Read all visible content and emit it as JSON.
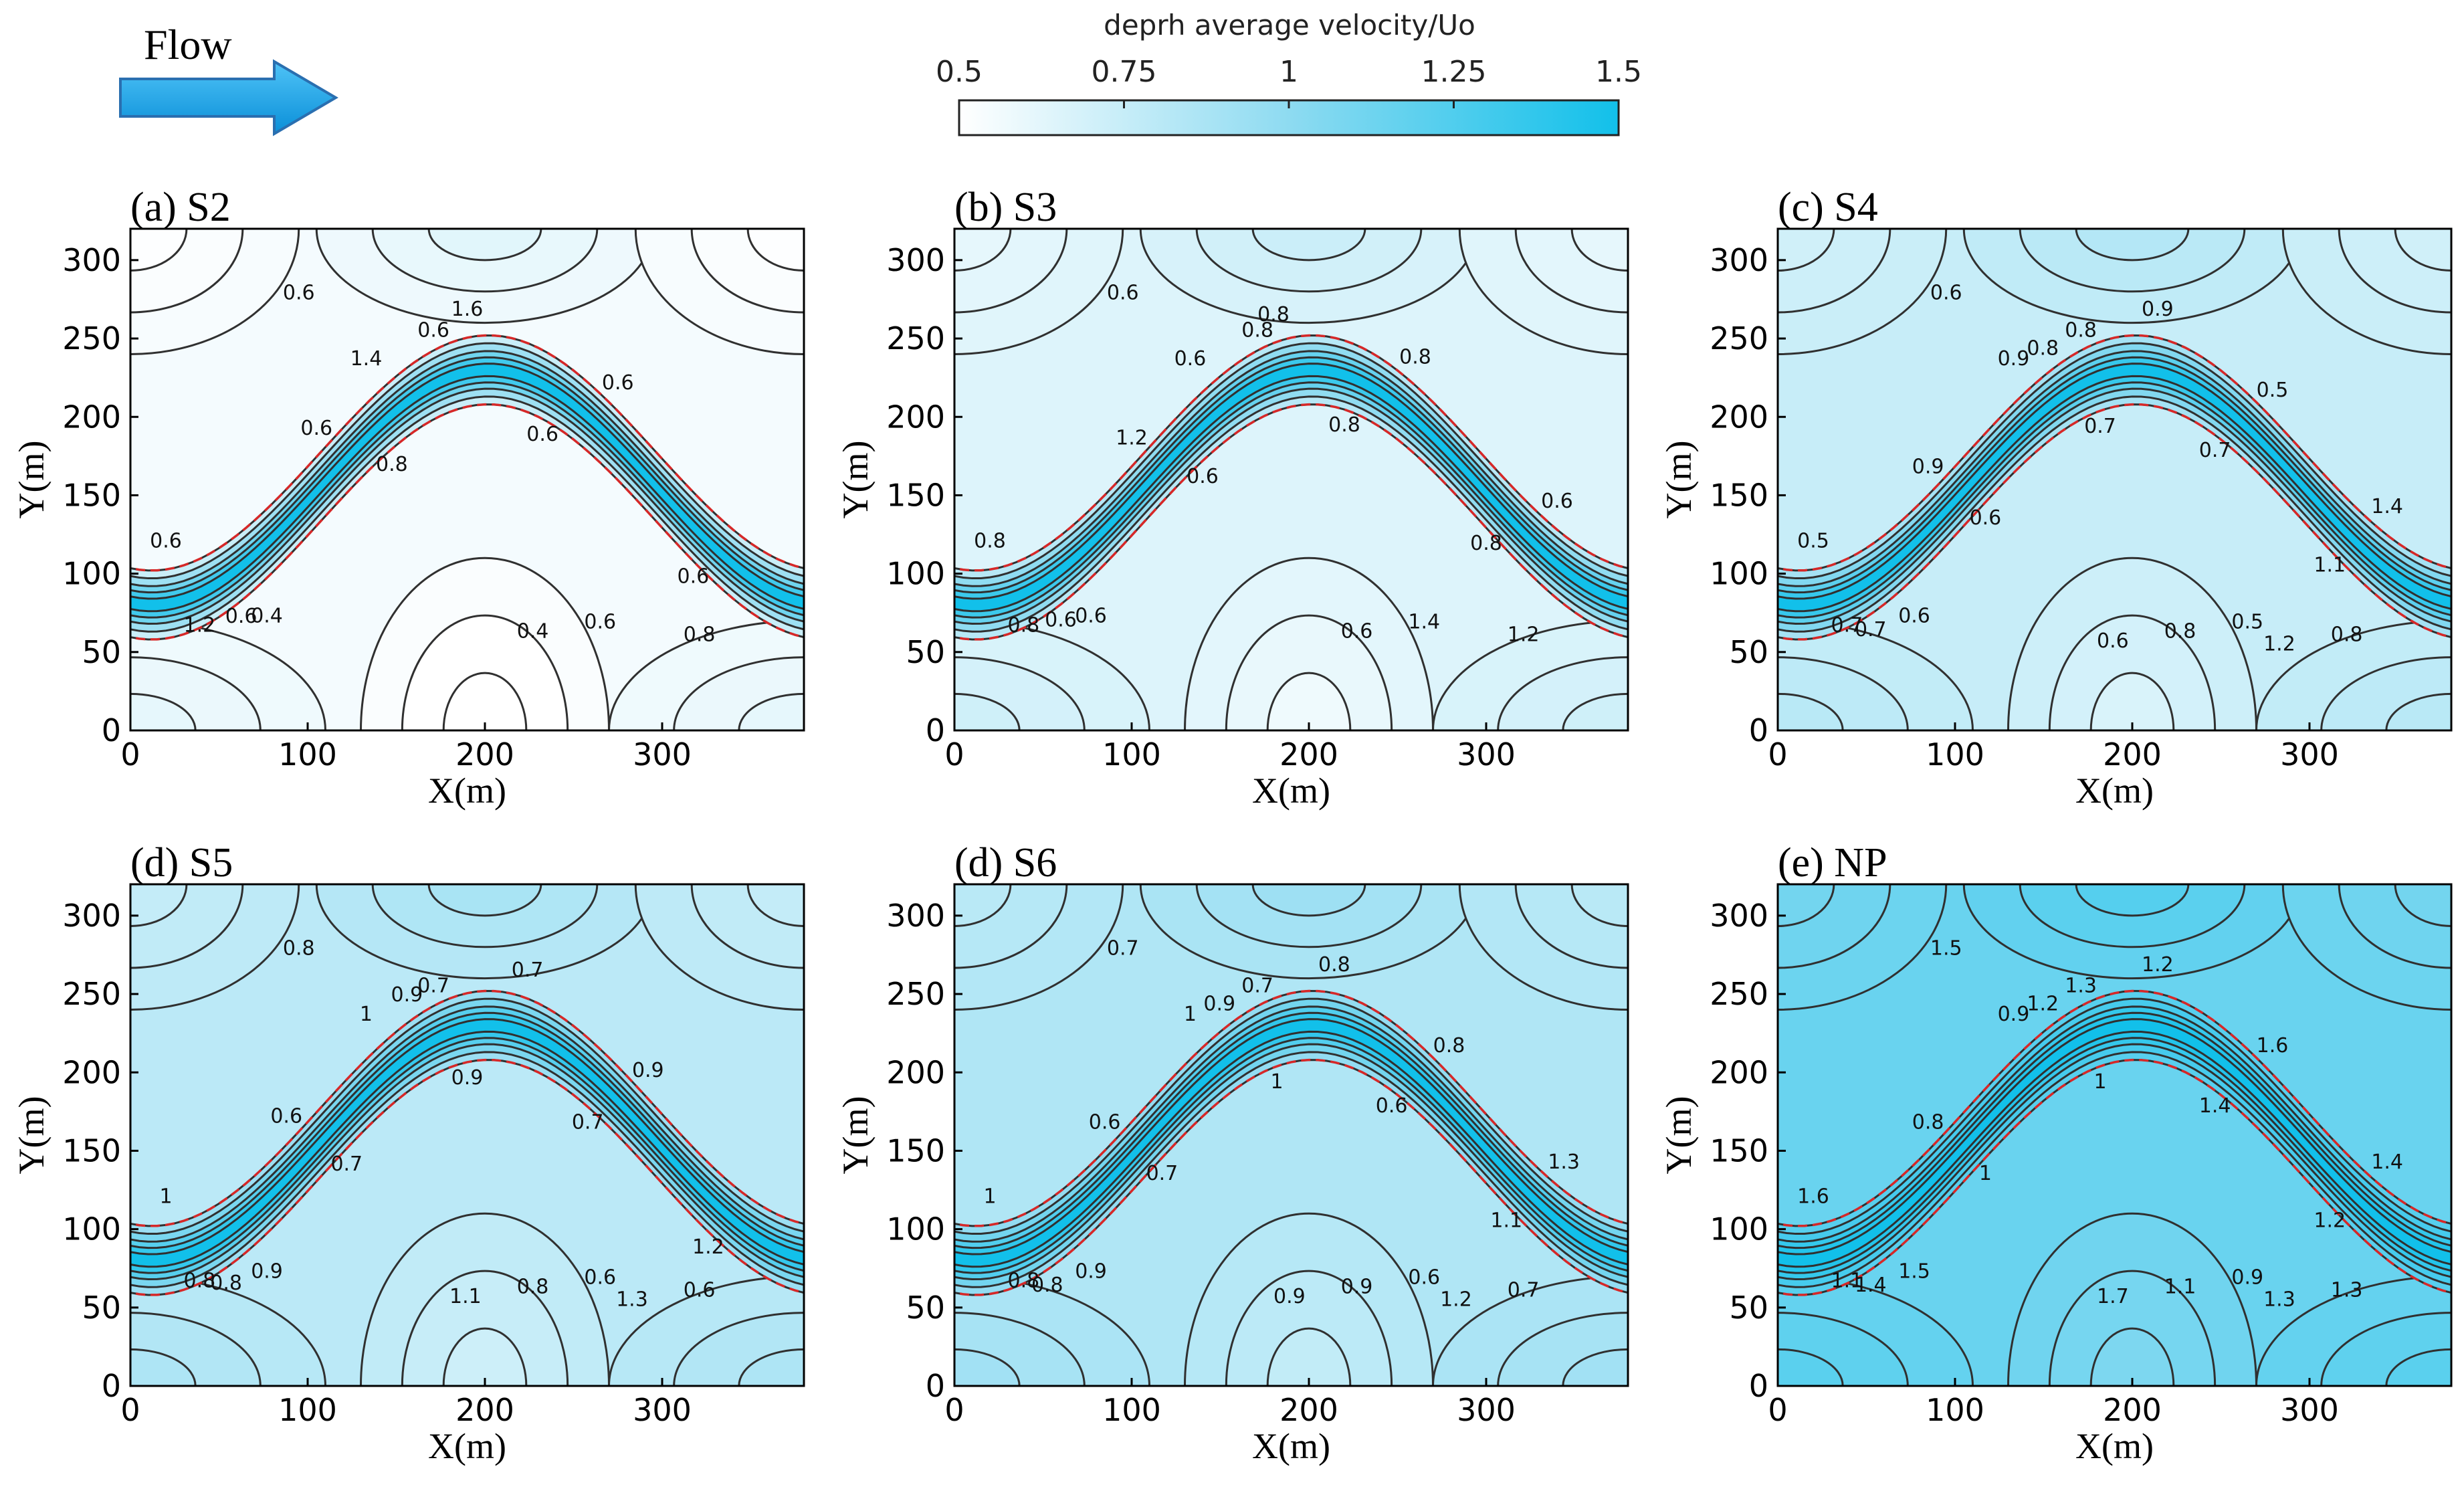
{
  "header": {
    "flow_label": "Flow",
    "colorbar": {
      "title": "deprh average velocity/Uo",
      "ticks": [
        "0.5",
        "0.75",
        "1",
        "1.25",
        "1.5"
      ],
      "tick_values": [
        0.5,
        0.75,
        1.0,
        1.25,
        1.5
      ],
      "range": [
        0.5,
        1.5
      ],
      "color_low": "#ffffff",
      "color_high": "#12c0ea"
    }
  },
  "colors": {
    "contour_line": "#303030",
    "channel_bank": "#d62828",
    "frame": "#000000"
  },
  "chart_data": [
    {
      "id": "a",
      "type": "contour",
      "title": "(a) S2",
      "xlabel": "X(m)",
      "ylabel": "Y(m)",
      "xlim": [
        0,
        380
      ],
      "ylim": [
        0,
        320
      ],
      "xticks": [
        "0",
        "100",
        "200",
        "300"
      ],
      "yticks": [
        "0",
        "50",
        "100",
        "150",
        "200",
        "250",
        "300"
      ],
      "ambient": 0.55,
      "channel_peak": 1.5,
      "contour_labels": [
        "0.6",
        "0.4",
        "0.6",
        "0.6",
        "0.6",
        "0.6",
        "0.8",
        "1.2",
        "1.6",
        "1.4",
        "0.6",
        "0.4",
        "0.6",
        "0.8",
        "0.6",
        "0.6"
      ]
    },
    {
      "id": "b",
      "type": "contour",
      "title": "(b) S3",
      "xlabel": "X(m)",
      "ylabel": "Y(m)",
      "xlim": [
        0,
        380
      ],
      "ylim": [
        0,
        320
      ],
      "xticks": [
        "0",
        "100",
        "200",
        "300"
      ],
      "yticks": [
        "0",
        "50",
        "100",
        "150",
        "200",
        "250",
        "300"
      ],
      "ambient": 0.65,
      "channel_peak": 1.5,
      "contour_labels": [
        "0.8",
        "0.6",
        "0.6",
        "0.8",
        "1.2",
        "1.4",
        "0.6",
        "0.8",
        "0.8",
        "0.6",
        "0.8",
        "0.6",
        "0.8",
        "1.2",
        "0.8",
        "0.6",
        "0.6"
      ]
    },
    {
      "id": "c",
      "type": "contour",
      "title": "(c) S4",
      "xlabel": "X(m)",
      "ylabel": "Y(m)",
      "xlim": [
        0,
        380
      ],
      "ylim": [
        0,
        320
      ],
      "xticks": [
        "0",
        "100",
        "200",
        "300"
      ],
      "yticks": [
        "0",
        "50",
        "100",
        "150",
        "200",
        "250",
        "300"
      ],
      "ambient": 0.75,
      "channel_peak": 1.5,
      "contour_labels": [
        "0.5",
        "0.6",
        "0.7",
        "0.8",
        "0.9",
        "0.5",
        "0.6",
        "0.7",
        "0.8",
        "0.9",
        "0.7",
        "0.8",
        "0.9",
        "0.8",
        "0.7",
        "0.6",
        "0.5",
        "0.6",
        "1.1",
        "1.2",
        "1.4"
      ]
    },
    {
      "id": "d",
      "type": "contour",
      "title": "(d) S5",
      "xlabel": "X(m)",
      "ylabel": "Y(m)",
      "xlim": [
        0,
        380
      ],
      "ylim": [
        0,
        320
      ],
      "xticks": [
        "0",
        "100",
        "200",
        "300"
      ],
      "yticks": [
        "0",
        "50",
        "100",
        "150",
        "200",
        "250",
        "300"
      ],
      "ambient": 0.8,
      "channel_peak": 1.5,
      "contour_labels": [
        "1",
        "0.9",
        "0.8",
        "0.7",
        "0.6",
        "0.6",
        "0.7",
        "0.8",
        "0.9",
        "1",
        "0.9",
        "0.8",
        "0.7",
        "0.6",
        "0.7",
        "0.8",
        "0.9",
        "1.1",
        "1.2",
        "1.3"
      ]
    },
    {
      "id": "e",
      "type": "contour",
      "title": "(d) S6",
      "xlabel": "X(m)",
      "ylabel": "Y(m)",
      "xlim": [
        0,
        380
      ],
      "ylim": [
        0,
        320
      ],
      "xticks": [
        "0",
        "100",
        "200",
        "300"
      ],
      "yticks": [
        "0",
        "50",
        "100",
        "150",
        "200",
        "250",
        "300"
      ],
      "ambient": 0.85,
      "channel_peak": 1.5,
      "contour_labels": [
        "1",
        "0.9",
        "0.8",
        "0.7",
        "0.6",
        "0.6",
        "0.7",
        "0.8",
        "0.9",
        "1",
        "1",
        "0.9",
        "0.8",
        "0.7",
        "0.6",
        "0.7",
        "0.8",
        "0.9",
        "1.1",
        "1.2",
        "1.3"
      ]
    },
    {
      "id": "f",
      "type": "contour",
      "title": "(e) NP",
      "xlabel": "X(m)",
      "ylabel": "Y(m)",
      "xlim": [
        0,
        380
      ],
      "ylim": [
        0,
        320
      ],
      "xticks": [
        "0",
        "100",
        "200",
        "300"
      ],
      "yticks": [
        "0",
        "50",
        "100",
        "150",
        "200",
        "250",
        "300"
      ],
      "ambient": 1.15,
      "channel_peak": 1.5,
      "contour_labels": [
        "1.6",
        "1.5",
        "1.4",
        "1.3",
        "0.8",
        "0.9",
        "1",
        "1.1",
        "1.2",
        "0.9",
        "1",
        "1.1",
        "1.2",
        "1.3",
        "1.4",
        "1.5",
        "1.6",
        "1.7",
        "1.2",
        "1.3",
        "1.4"
      ]
    }
  ]
}
